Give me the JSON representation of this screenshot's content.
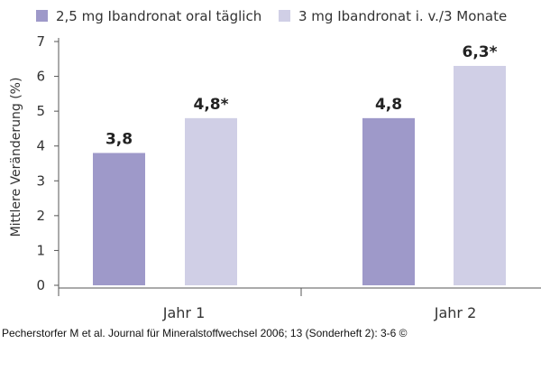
{
  "chart_data": {
    "type": "bar",
    "categories": [
      "Jahr 1",
      "Jahr 2"
    ],
    "series": [
      {
        "name": "2,5 mg Ibandronat oral täglich",
        "values": [
          3.8,
          4.8
        ],
        "labels": [
          "3,8",
          "4,8"
        ],
        "color": "#9e99c9"
      },
      {
        "name": "3 mg Ibandronat i. v./3 Monate",
        "values": [
          4.8,
          6.3
        ],
        "labels": [
          "4,8*",
          "6,3*"
        ],
        "color": "#d0cfe6"
      }
    ],
    "ylabel": "Mittlere Veränderung (%)",
    "xlabel": "",
    "ylim": [
      0,
      7
    ],
    "yticks": [
      "0",
      "1",
      "2",
      "3",
      "4",
      "5",
      "6",
      "7"
    ],
    "grid": false,
    "legend_position": "top"
  },
  "citation": "Pecherstorfer M et al. Journal für Mineralstoffwechsel 2006; 13 (Sonderheft 2): 3-6 ©"
}
